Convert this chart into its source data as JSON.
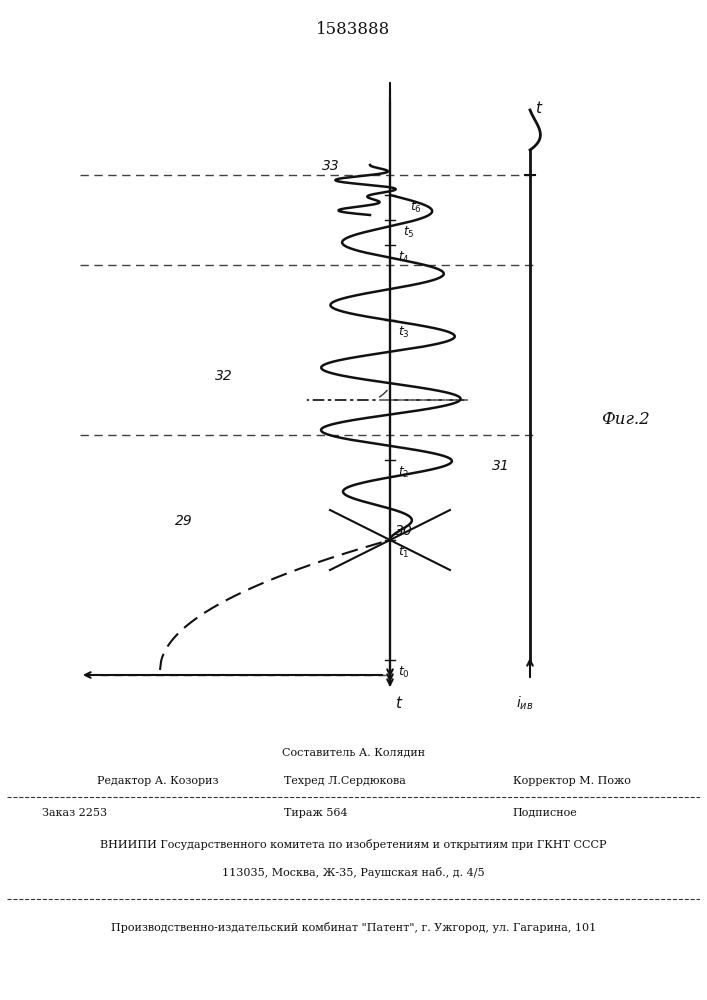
{
  "patent_number": "1583888",
  "fig_label": "Фиг.2",
  "bg_color": "#ffffff",
  "line_color": "#111111",
  "footer_lines": [
    "Составитель А. Колядин",
    "Редактор А. Козориз",
    "Техред Л.Сердюкова",
    "Корректор М. Пожо",
    "Заказ 2253",
    "Тираж 564",
    "Подписное",
    "ВНИИПИ Государственного комитета по изобретениям и открытиям при ГКНТ СССР",
    "113035, Москва, Ж-35, Раушская наб., д. 4/5",
    "Производственно-издательский комбинат \"Патент\", г. Ужгород, ул. Гагарина, 101"
  ]
}
